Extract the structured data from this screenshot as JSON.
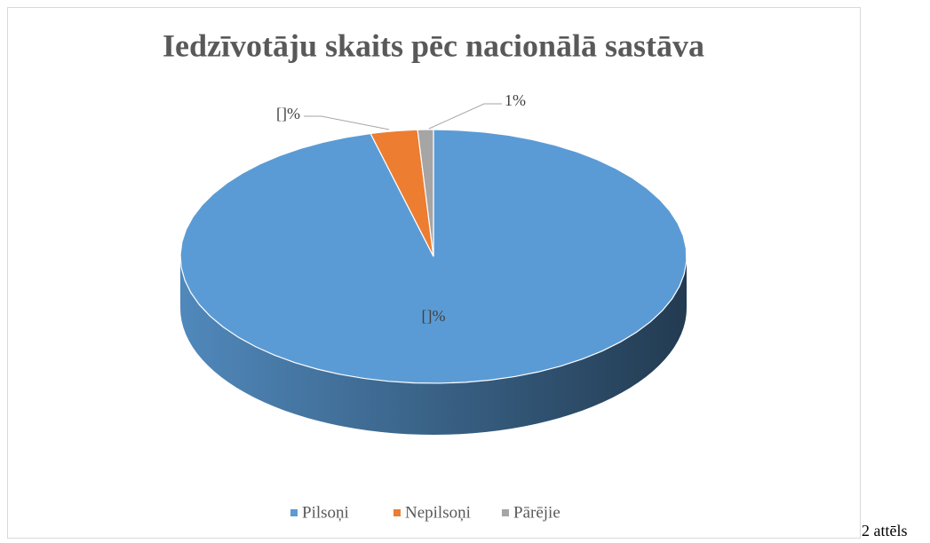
{
  "chart_data": {
    "type": "pie",
    "title": "Iedzīvotāju skaits pēc nacionālā sastāva",
    "categories": [
      "Pilsoņi",
      "Nepilsoņi",
      "Pārējie"
    ],
    "values": [
      96,
      3,
      1
    ],
    "value_labels": [
      "[]%",
      "[]%",
      "1%"
    ],
    "colors": [
      "#5b9bd5",
      "#ed7d31",
      "#a5a5a5"
    ],
    "legend": "bottom"
  },
  "caption": "2 attēls"
}
